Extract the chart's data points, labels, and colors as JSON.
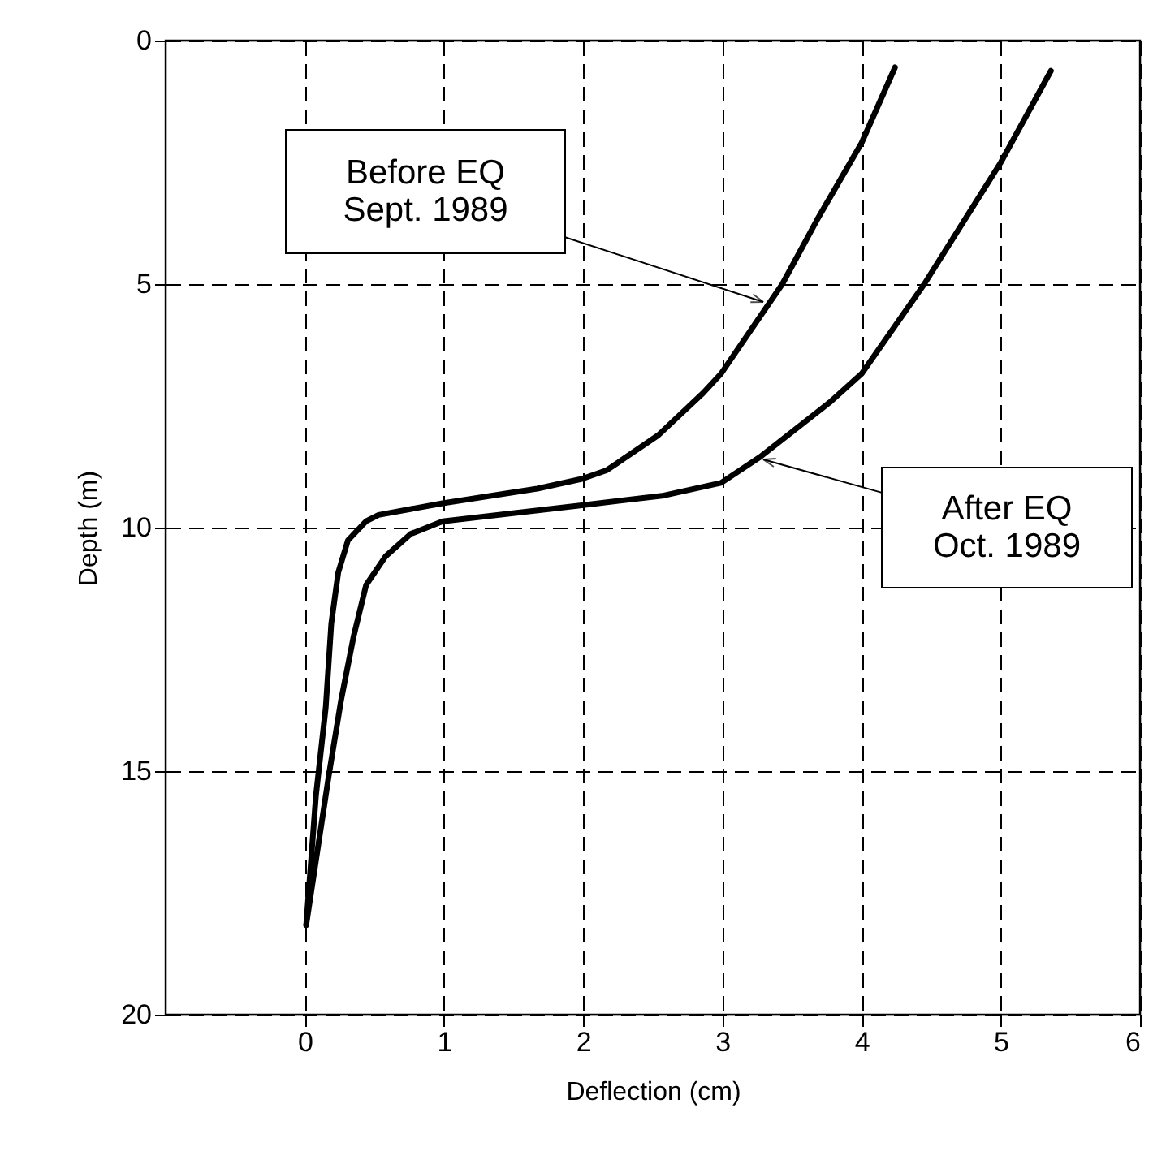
{
  "chart_data": {
    "type": "line",
    "xlabel": "Deflection (cm)",
    "ylabel": "Depth (m)",
    "xlim": [
      -1,
      6
    ],
    "xticks": [
      0,
      1,
      2,
      3,
      4,
      5,
      6
    ],
    "ylim": [
      20,
      0
    ],
    "yticks": [
      0,
      5,
      10,
      15,
      20
    ],
    "grid": true,
    "marker": "none",
    "line_style": "solid",
    "series": [
      {
        "color": "#000000",
        "x": [
          4.24,
          4.0,
          3.68,
          3.43,
          2.99,
          2.86,
          2.54,
          2.17,
          1.99,
          1.67,
          0.99,
          0.53,
          0.44,
          0.31,
          0.24,
          0.19,
          0.15,
          0.08,
          0.01
        ],
        "values": [
          0.55,
          2.1,
          3.68,
          5.0,
          6.84,
          7.24,
          8.1,
          8.82,
          9.0,
          9.2,
          9.5,
          9.74,
          9.87,
          10.26,
          10.92,
          11.97,
          13.7,
          15.5,
          18.16
        ]
      },
      {
        "color": "#000000",
        "x": [
          5.36,
          5.0,
          4.45,
          4.0,
          3.77,
          3.27,
          2.99,
          2.58,
          1.99,
          0.99,
          0.76,
          0.58,
          0.44,
          0.35,
          0.26,
          0.17,
          0.01
        ],
        "values": [
          0.62,
          2.5,
          5.0,
          6.84,
          7.43,
          8.55,
          9.08,
          9.34,
          9.54,
          9.87,
          10.13,
          10.59,
          11.18,
          12.24,
          13.55,
          15.13,
          18.16
        ]
      }
    ],
    "annotations": [
      "Before EQ\nSept. 1989",
      "After EQ\nOct. 1989"
    ]
  }
}
